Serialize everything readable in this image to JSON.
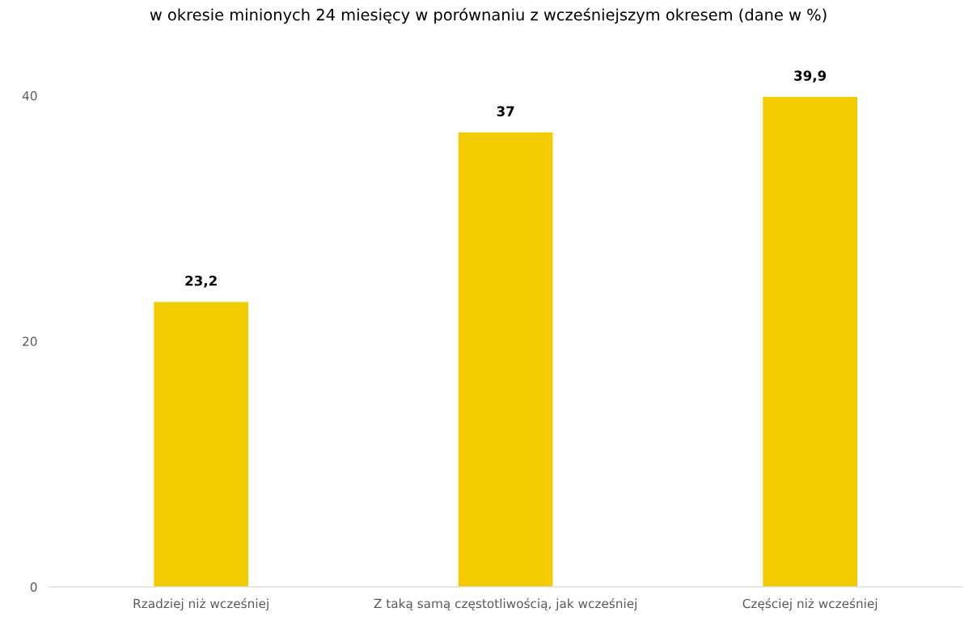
{
  "chart_data": {
    "type": "bar",
    "title": "w okresie minionych 24 miesięcy w porównaniu z wcześniejszym okresem (dane w %)",
    "categories": [
      "Rzadziej niż wcześniej",
      "Z taką samą częstotliwością, jak wcześniej",
      "Częściej niż wcześniej"
    ],
    "values": [
      23.2,
      37,
      39.9
    ],
    "color": "#f2cc00",
    "value_labels": [
      "23,2",
      "37",
      "39,9"
    ],
    "ylim": [
      0,
      40
    ],
    "yticks": [
      0,
      20,
      40
    ],
    "grid": false,
    "legend": false
  }
}
